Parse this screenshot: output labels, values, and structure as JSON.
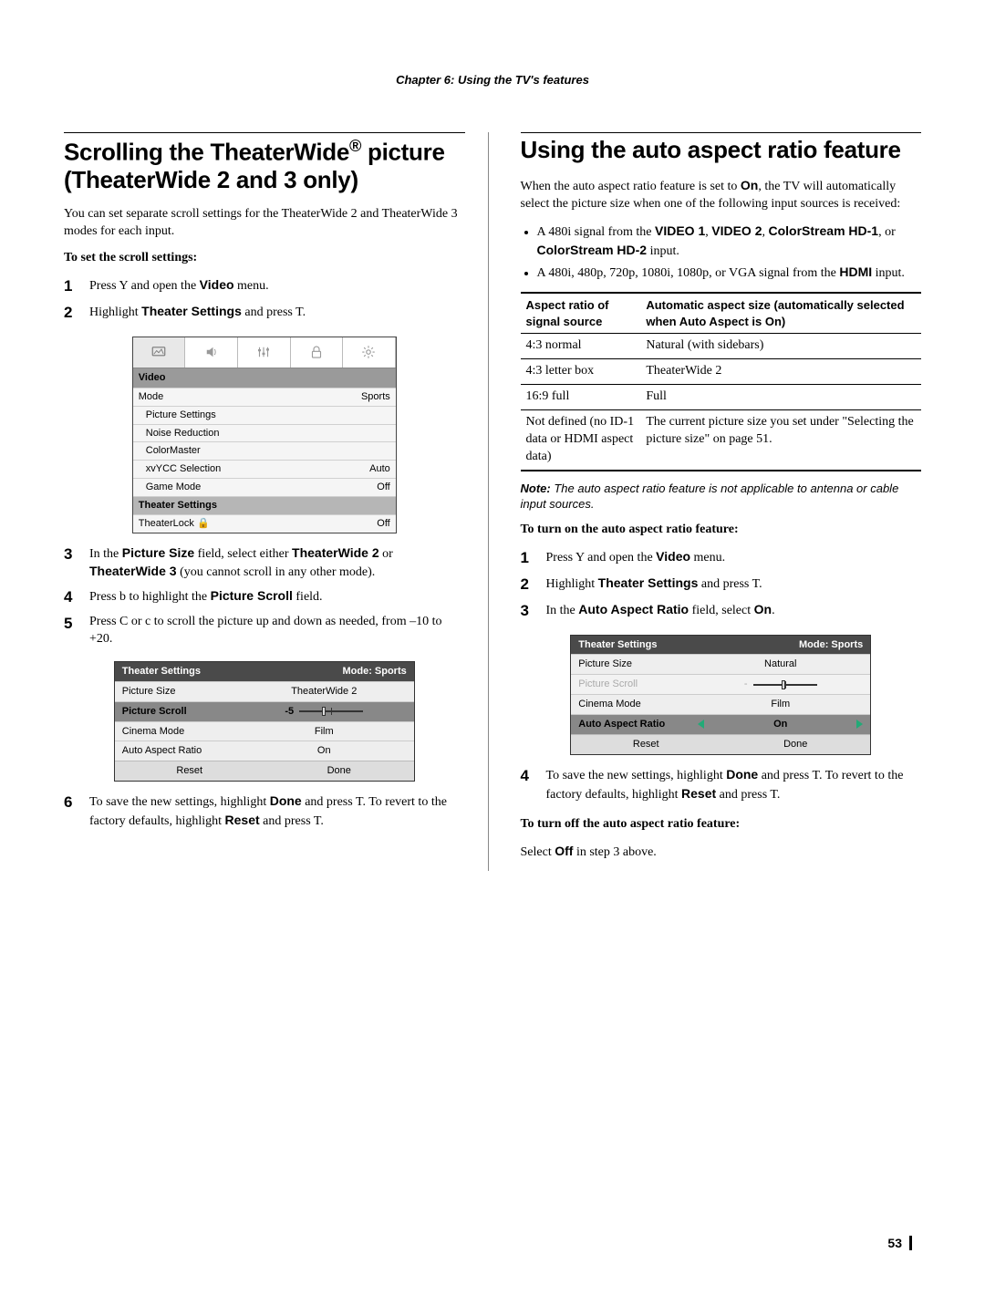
{
  "chapter_header": "Chapter 6: Using the TV's features",
  "page_number": "53",
  "left": {
    "title_pre": "Scrolling the TheaterWide",
    "title_reg": "®",
    "title_post": " picture (TheaterWide 2 and 3 only)",
    "intro": "You can set separate scroll settings for the TheaterWide 2 and TheaterWide 3 modes for each input.",
    "subhead1": "To set the scroll settings:",
    "step1": "Press Y and open the Video menu.",
    "step1_before": "Press Y and open the ",
    "step1_bold": "Video",
    "step1_after": " menu.",
    "step2_before": "Highlight ",
    "step2_bold": "Theater Settings",
    "step2_after": " and press T.",
    "video_menu": {
      "header": "Video",
      "rows": [
        {
          "l": "Mode",
          "r": "Sports",
          "indent": false,
          "sel": false
        },
        {
          "l": "Picture Settings",
          "r": "",
          "indent": true,
          "sel": false
        },
        {
          "l": "Noise Reduction",
          "r": "",
          "indent": true,
          "sel": false
        },
        {
          "l": "ColorMaster",
          "r": "",
          "indent": true,
          "sel": false
        },
        {
          "l": "xvYCC Selection",
          "r": "Auto",
          "indent": true,
          "sel": false
        },
        {
          "l": "Game Mode",
          "r": "Off",
          "indent": true,
          "sel": false
        },
        {
          "l": "Theater Settings",
          "r": "",
          "indent": false,
          "sel": true
        },
        {
          "l": "TheaterLock",
          "r": "Off",
          "indent": false,
          "sel": false,
          "lock": true
        }
      ]
    },
    "step3_before": "In the ",
    "step3_b1": "Picture Size",
    "step3_mid": " field, select either ",
    "step3_b2": "TheaterWide 2",
    "step3_mid2": " or ",
    "step3_b3": "TheaterWide 3",
    "step3_after": " (you cannot scroll in any other mode).",
    "step4_before": "Press b to highlight the ",
    "step4_bold": "Picture Scroll",
    "step4_after": " field.",
    "step5": "Press C or c to scroll the picture up and down as needed, from –10 to +20.",
    "ts_panel": {
      "title": "Theater Settings",
      "mode": "Mode: Sports",
      "rows": [
        {
          "l": "Picture Size",
          "r": "TheaterWide 2",
          "sel": false
        },
        {
          "l": "Picture Scroll",
          "r": "-5",
          "sel": true,
          "slider": true,
          "thumb_pct": 35
        },
        {
          "l": "Cinema Mode",
          "r": "Film",
          "sel": false
        },
        {
          "l": "Auto Aspect Ratio",
          "r": "On",
          "sel": false
        }
      ],
      "reset": "Reset",
      "done": "Done"
    },
    "step6_before": "To save the new settings, highlight ",
    "step6_b1": "Done",
    "step6_mid": " and press T. To revert to the factory defaults, highlight ",
    "step6_b2": "Reset",
    "step6_after": " and press T."
  },
  "right": {
    "title": "Using the auto aspect ratio feature",
    "intro_before": "When the auto aspect ratio feature is set to ",
    "intro_b1": "On",
    "intro_after": ", the TV will automatically select the picture size when one of the following input sources is received:",
    "bullet1_before": "A 480i signal from the ",
    "bullet1_b1": "VIDEO 1",
    "bullet1_s1": ", ",
    "bullet1_b2": "VIDEO 2",
    "bullet1_s2": ", ",
    "bullet1_b3": "ColorStream HD-1",
    "bullet1_s3": ", or ",
    "bullet1_b4": "ColorStream HD-2",
    "bullet1_after": " input.",
    "bullet2_before": "A 480i, 480p, 720p, 1080i, 1080p, or VGA signal from the ",
    "bullet2_b1": "HDMI",
    "bullet2_after": " input.",
    "table": {
      "h1": "Aspect ratio of signal source",
      "h2": "Automatic aspect size (automatically selected when Auto Aspect is On)",
      "rows": [
        {
          "a": "4:3 normal",
          "b": "Natural (with sidebars)"
        },
        {
          "a": "4:3 letter box",
          "b": "TheaterWide 2"
        },
        {
          "a": "16:9 full",
          "b": "Full"
        },
        {
          "a": "Not defined (no ID-1 data or HDMI aspect data)",
          "b": "The current picture size you set under \"Selecting the picture size\" on page 51."
        }
      ]
    },
    "note_label": "Note:",
    "note_body": " The auto aspect ratio feature is not applicable to antenna or cable input sources.",
    "subhead_on": "To turn on the auto aspect ratio feature:",
    "r_step1_before": "Press Y and open the ",
    "r_step1_bold": "Video",
    "r_step1_after": " menu.",
    "r_step2_before": "Highlight ",
    "r_step2_bold": "Theater Settings",
    "r_step2_after": " and press T.",
    "r_step3_before": "In the ",
    "r_step3_bold": "Auto Aspect Ratio",
    "r_step3_mid": " field, select ",
    "r_step3_b2": "On",
    "r_step3_after": ".",
    "ts_panel2": {
      "title": "Theater Settings",
      "mode": "Mode: Sports",
      "rows": [
        {
          "l": "Picture Size",
          "r": "Natural",
          "sel": false
        },
        {
          "l": "Picture Scroll",
          "r": "",
          "sel": false,
          "slider": true,
          "dis": true,
          "thumb_pct": 45,
          "leftval": "-"
        },
        {
          "l": "Cinema Mode",
          "r": "Film",
          "sel": false
        },
        {
          "l": "Auto Aspect Ratio",
          "r": "On",
          "sel": true,
          "arrows": true
        }
      ],
      "reset": "Reset",
      "done": "Done"
    },
    "r_step4_before": "To save the new settings, highlight ",
    "r_step4_b1": "Done",
    "r_step4_mid": " and press T. To revert to the factory defaults, highlight ",
    "r_step4_b2": "Reset",
    "r_step4_after": " and press T.",
    "subhead_off": "To turn off the auto aspect ratio feature:",
    "off_before": "Select ",
    "off_bold": "Off",
    "off_after": " in step 3 above."
  },
  "colors": {
    "arrow": "#2aa876"
  }
}
